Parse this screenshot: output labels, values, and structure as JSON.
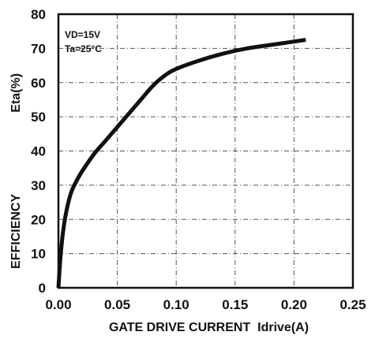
{
  "chart_data": {
    "type": "line",
    "xlabel": "GATE DRIVE CURRENT  Idrive(A)",
    "ylabel": "EFFICIENCY",
    "ylabel_secondary": "Eta(%)",
    "xlim": [
      0,
      0.25
    ],
    "ylim": [
      0,
      80
    ],
    "x_ticks": [
      "0.00",
      "0.05",
      "0.10",
      "0.15",
      "0.20",
      "0.25"
    ],
    "y_ticks": [
      "0",
      "10",
      "20",
      "30",
      "40",
      "50",
      "60",
      "70",
      "80"
    ],
    "grid": true,
    "annotations": [
      "VD=15V",
      "Ta=25°C"
    ],
    "series": [
      {
        "x": [
          0.0,
          0.002,
          0.005,
          0.01,
          0.015,
          0.02,
          0.03,
          0.04,
          0.05,
          0.06,
          0.07,
          0.08,
          0.09,
          0.1,
          0.12,
          0.14,
          0.16,
          0.18,
          0.2,
          0.21
        ],
        "y": [
          0,
          10,
          19,
          27,
          31,
          34,
          39,
          43,
          47,
          51,
          55,
          59,
          62,
          64,
          66.5,
          68.5,
          70,
          71,
          72,
          72.5
        ]
      }
    ]
  }
}
